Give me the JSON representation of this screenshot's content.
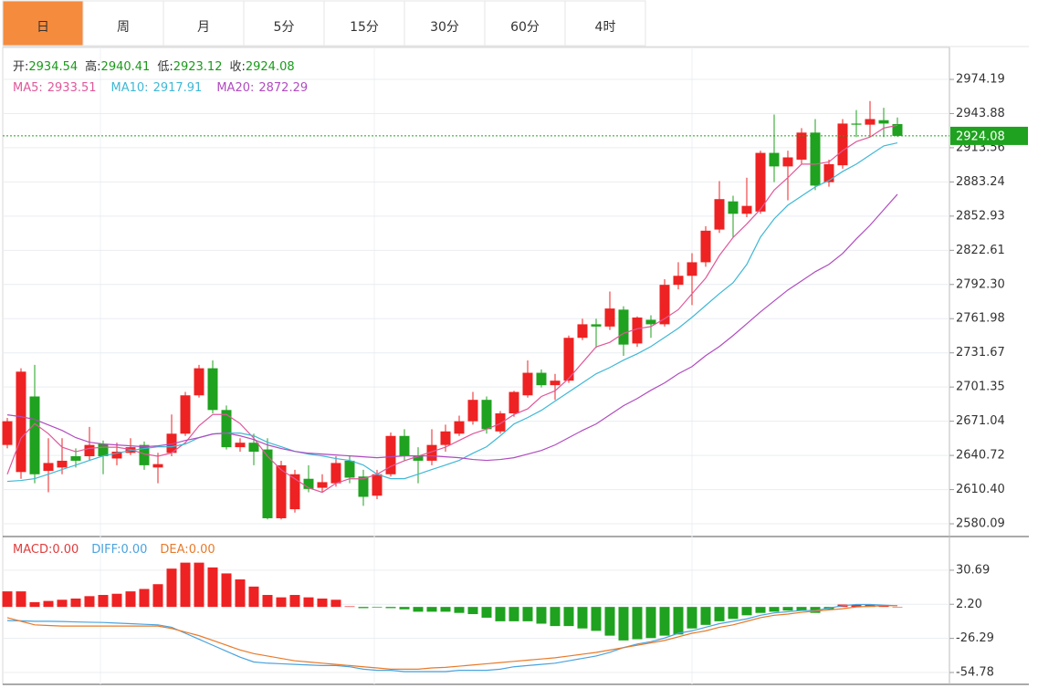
{
  "tabs": [
    "日",
    "周",
    "月",
    "5分",
    "15分",
    "30分",
    "60分",
    "4时"
  ],
  "active_tab": 0,
  "chart_data": [
    {
      "type": "candlestick",
      "labels": {
        "open": "开:",
        "high": "高:",
        "low": "低:",
        "close": "收:"
      },
      "up_color": "#ee2222",
      "down_color": "#1fa21f",
      "open": [
        2650,
        2626,
        2693,
        2627,
        2630,
        2640,
        2640,
        2651,
        2638,
        2643,
        2650,
        2630,
        2643,
        2660,
        2694,
        2718,
        2681,
        2648,
        2652,
        2646,
        2585,
        2593,
        2620,
        2612,
        2616,
        2636,
        2622,
        2605,
        2624,
        2658,
        2640,
        2636,
        2650,
        2660,
        2671,
        2690,
        2662,
        2678,
        2694,
        2714,
        2703,
        2707,
        2745,
        2757,
        2755,
        2770,
        2740,
        2761,
        2757,
        2792,
        2800,
        2812,
        2841,
        2866,
        2855,
        2857,
        2909,
        2897,
        2903,
        2927,
        2883,
        2898,
        2935,
        2934,
        2938,
        2934.54
      ],
      "high": [
        2674,
        2718,
        2721,
        2656,
        2656,
        2647,
        2666,
        2654,
        2652,
        2656,
        2653,
        2643,
        2677,
        2697,
        2721,
        2725,
        2685,
        2656,
        2660,
        2656,
        2636,
        2628,
        2632,
        2624,
        2640,
        2640,
        2628,
        2628,
        2661,
        2664,
        2648,
        2664,
        2668,
        2676,
        2697,
        2693,
        2680,
        2698,
        2725,
        2717,
        2713,
        2747,
        2762,
        2762,
        2786,
        2773,
        2764,
        2765,
        2797,
        2812,
        2820,
        2844,
        2884,
        2871,
        2887,
        2911,
        2943,
        2911,
        2931,
        2939,
        2903,
        2939,
        2947,
        2955,
        2949,
        2940.41
      ],
      "low": [
        2647,
        2620,
        2616,
        2608,
        2624,
        2630,
        2636,
        2624,
        2632,
        2641,
        2628,
        2616,
        2640,
        2658,
        2692,
        2678,
        2646,
        2644,
        2632,
        2584,
        2584,
        2590,
        2608,
        2608,
        2613,
        2616,
        2596,
        2602,
        2622,
        2636,
        2616,
        2632,
        2644,
        2658,
        2668,
        2660,
        2660,
        2675,
        2692,
        2701,
        2690,
        2705,
        2743,
        2736,
        2752,
        2729,
        2737,
        2745,
        2755,
        2788,
        2774,
        2808,
        2838,
        2834,
        2852,
        2855,
        2883,
        2867,
        2899,
        2876,
        2879,
        2895,
        2923,
        2923,
        2923,
        2923.12
      ],
      "close": [
        2671,
        2715,
        2624,
        2634,
        2636,
        2636,
        2650,
        2640,
        2644,
        2648,
        2632,
        2633,
        2660,
        2694,
        2718,
        2681,
        2648,
        2652,
        2644,
        2585,
        2632,
        2624,
        2611,
        2617,
        2634,
        2621,
        2604,
        2624,
        2658,
        2640,
        2636,
        2650,
        2662,
        2671,
        2690,
        2664,
        2678,
        2697,
        2714,
        2703,
        2707,
        2745,
        2757,
        2755,
        2771,
        2739,
        2763,
        2757,
        2792,
        2800,
        2812,
        2840,
        2868,
        2855,
        2862,
        2909,
        2897,
        2905,
        2927,
        2880,
        2899,
        2935,
        2934,
        2939,
        2935,
        2924.08
      ],
      "series": [
        {
          "name": "MA5:",
          "color": "#e0589a",
          "values": [
            2624,
            2656,
            2669,
            2660,
            2648,
            2644,
            2647,
            2648,
            2648,
            2646,
            2642,
            2640,
            2643,
            2652,
            2667,
            2677,
            2677,
            2669,
            2656,
            2640,
            2628,
            2620,
            2612,
            2608,
            2616,
            2620,
            2620,
            2624,
            2631,
            2636,
            2640,
            2644,
            2648,
            2654,
            2660,
            2664,
            2669,
            2677,
            2682,
            2693,
            2698,
            2709,
            2723,
            2737,
            2741,
            2749,
            2753,
            2755,
            2762,
            2770,
            2784,
            2798,
            2818,
            2834,
            2846,
            2859,
            2876,
            2887,
            2899,
            2899,
            2901,
            2911,
            2919,
            2923,
            2931,
            2933.51
          ]
        },
        {
          "name": "MA10:",
          "color": "#3fb8d6",
          "values": [
            2617.7,
            2618.5,
            2620.1,
            2624.1,
            2628.2,
            2632.2,
            2636.3,
            2640.3,
            2642.7,
            2645.1,
            2646.8,
            2648.4,
            2648.4,
            2650.8,
            2656.5,
            2659.7,
            2660.5,
            2660.5,
            2658.1,
            2652.4,
            2648.4,
            2644.3,
            2641.9,
            2640.3,
            2637.9,
            2636.3,
            2632.2,
            2624.1,
            2620.1,
            2620.1,
            2624.1,
            2628.2,
            2632.2,
            2636.3,
            2642.7,
            2648.4,
            2658.1,
            2668.6,
            2674.3,
            2680.7,
            2688.8,
            2696.9,
            2705,
            2713.1,
            2718.7,
            2725.2,
            2730.8,
            2737.3,
            2745.4,
            2753.5,
            2763.2,
            2773.7,
            2784.2,
            2793.9,
            2810.1,
            2834.3,
            2850.5,
            2862.6,
            2870.7,
            2878.8,
            2884.5,
            2892.5,
            2899,
            2907.1,
            2915.2,
            2917.91
          ]
        },
        {
          "name": "MA20:",
          "color": "#b04cc0",
          "values": [
            2676.7,
            2675.1,
            2672.6,
            2667.8,
            2662.9,
            2656.5,
            2652.4,
            2650.8,
            2650,
            2649.2,
            2648.4,
            2649.2,
            2650.8,
            2654,
            2656.5,
            2659.7,
            2660.5,
            2658.1,
            2654.8,
            2650,
            2646.8,
            2644.3,
            2642.7,
            2641.9,
            2641.1,
            2640.3,
            2639.5,
            2638.7,
            2639.5,
            2640.3,
            2640.3,
            2640.3,
            2639.5,
            2638.7,
            2637.1,
            2636.3,
            2637.1,
            2638.7,
            2641.9,
            2645.1,
            2650,
            2656.5,
            2662.9,
            2668.6,
            2676.7,
            2684.8,
            2691.2,
            2698.5,
            2705,
            2713.1,
            2719.5,
            2729.2,
            2737.3,
            2747,
            2757.5,
            2768,
            2777.7,
            2787.4,
            2795.5,
            2803.6,
            2810.1,
            2819.8,
            2832.7,
            2844.8,
            2858.6,
            2872.29
          ]
        }
      ],
      "ylim": [
        2569.6,
        3002.5
      ],
      "yticks": [
        2974.19,
        2943.88,
        2913.56,
        2883.24,
        2852.93,
        2822.61,
        {
          "value": 2792.3,
          "label": "2792.30"
        },
        2761.98,
        2731.67,
        2701.35,
        2671.04,
        2640.72,
        {
          "value": 2610.4,
          "label": "2610.40"
        },
        2580.09
      ],
      "grid": true
    },
    {
      "type": "macd",
      "legend": [
        {
          "text": "MACD:0.00",
          "color": "#e03c3c"
        },
        {
          "text": "DIFF:0.00",
          "color": "#4aa3df"
        },
        {
          "text": "DEA:0.00",
          "color": "#e87a2a"
        }
      ],
      "up_color": "#ee2222",
      "down_color": "#1fa21f",
      "values": [
        13,
        13,
        4,
        5,
        6,
        7,
        9,
        10,
        11,
        13,
        15,
        19,
        32,
        37,
        37,
        33,
        28,
        23,
        17,
        10,
        8,
        10,
        8,
        7,
        6,
        0.5,
        -1,
        -0.5,
        -1,
        -2,
        -4,
        -4,
        -4,
        -5,
        -6,
        -9,
        -12,
        -12,
        -12,
        -14,
        -16,
        -16,
        -18,
        -20,
        -24,
        -28,
        -27,
        -26,
        -24,
        -23,
        -18,
        -15,
        -12,
        -10,
        -7,
        -5,
        -4,
        -3,
        -3,
        -5,
        -2,
        2,
        2,
        2,
        1,
        0
      ],
      "series": [
        {
          "color": "#4aa3df",
          "values": [
            -11.4,
            -11.6,
            -12,
            -12,
            -12.2,
            -12.5,
            -12.8,
            -13,
            -13.5,
            -14,
            -14.5,
            -15,
            -17,
            -22,
            -27,
            -32,
            -37,
            -42,
            -46,
            -47,
            -47.5,
            -48,
            -48.5,
            -49,
            -49,
            -50,
            -52,
            -53,
            -53,
            -54,
            -54,
            -54,
            -54,
            -53,
            -53,
            -53,
            -52,
            -50,
            -49,
            -48,
            -47,
            -45,
            -43,
            -41,
            -38,
            -34,
            -31,
            -29,
            -26,
            -22,
            -20,
            -17,
            -14,
            -12,
            -10,
            -7,
            -5,
            -4,
            -3,
            -3,
            -1,
            1,
            2,
            2,
            1.5,
            1
          ]
        },
        {
          "color": "#e87a2a",
          "values": [
            -9,
            -12,
            -15,
            -15.5,
            -16,
            -16,
            -16,
            -16,
            -16,
            -16,
            -16,
            -16,
            -18,
            -21,
            -24,
            -28,
            -32,
            -36,
            -39,
            -41,
            -43,
            -45,
            -46,
            -47,
            -48,
            -49,
            -50,
            -51,
            -52,
            -52,
            -52,
            -51,
            -50.5,
            -49.5,
            -48.5,
            -47.5,
            -46.5,
            -45.5,
            -44.5,
            -43.5,
            -42.5,
            -41,
            -39.5,
            -38,
            -36,
            -34,
            -32,
            -30,
            -28,
            -25,
            -22,
            -20,
            -17,
            -15,
            -12,
            -9,
            -7,
            -6,
            -4.5,
            -3.5,
            -2.5,
            -1.5,
            0,
            0.5,
            1,
            1
          ]
        }
      ],
      "ylim": [
        -64.7,
        57.3
      ],
      "yticks": [
        30.69,
        {
          "value": 2.2,
          "label": "2.20"
        },
        -26.29,
        -54.78
      ],
      "grid": true
    }
  ]
}
